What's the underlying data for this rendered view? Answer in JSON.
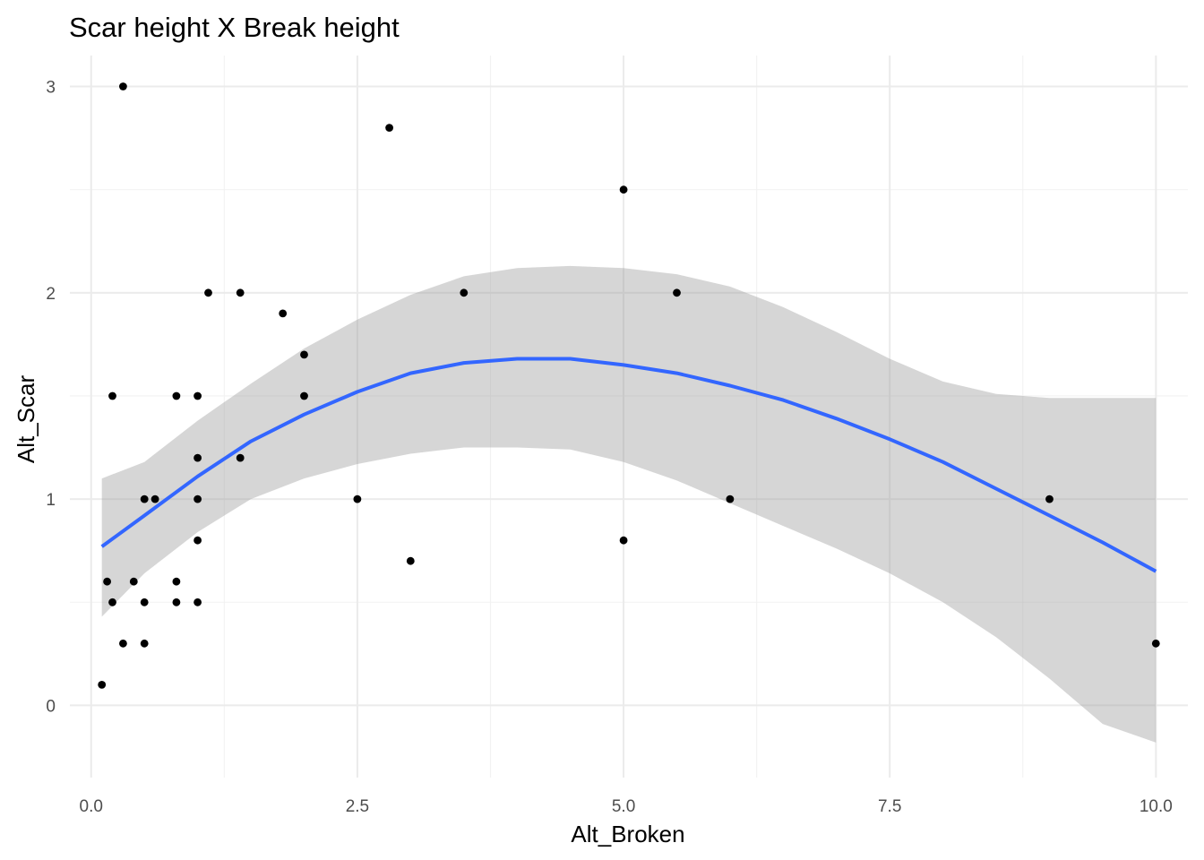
{
  "chart_data": {
    "type": "scatter",
    "title": "Scar height X Break height",
    "xlabel": "Alt_Broken",
    "ylabel": "Alt_Scar",
    "xlim": [
      -0.2,
      10.3
    ],
    "ylim": [
      -0.35,
      3.15
    ],
    "x_ticks": [
      0.0,
      2.5,
      5.0,
      7.5,
      10.0
    ],
    "x_tick_labels": [
      "0.0",
      "2.5",
      "5.0",
      "7.5",
      "10.0"
    ],
    "y_ticks": [
      0,
      1,
      2,
      3
    ],
    "y_tick_labels": [
      "0",
      "1",
      "2",
      "3"
    ],
    "grid": true,
    "point_color": "#000000",
    "smooth_color": "#3366ff",
    "ribbon_color": "#d9d9d9",
    "grid_major_color": "#ebebeb",
    "grid_minor_color": "#f2f2f2",
    "points": [
      {
        "x": 0.1,
        "y": 0.1
      },
      {
        "x": 0.15,
        "y": 0.6
      },
      {
        "x": 0.2,
        "y": 0.5
      },
      {
        "x": 0.2,
        "y": 1.5
      },
      {
        "x": 0.3,
        "y": 3.0
      },
      {
        "x": 0.3,
        "y": 0.3
      },
      {
        "x": 0.4,
        "y": 0.6
      },
      {
        "x": 0.5,
        "y": 0.3
      },
      {
        "x": 0.5,
        "y": 0.5
      },
      {
        "x": 0.5,
        "y": 1.0
      },
      {
        "x": 0.6,
        "y": 1.0
      },
      {
        "x": 0.8,
        "y": 1.5
      },
      {
        "x": 0.8,
        "y": 0.6
      },
      {
        "x": 0.8,
        "y": 0.5
      },
      {
        "x": 1.0,
        "y": 1.5
      },
      {
        "x": 1.0,
        "y": 1.2
      },
      {
        "x": 1.0,
        "y": 1.0
      },
      {
        "x": 1.0,
        "y": 0.8
      },
      {
        "x": 1.0,
        "y": 0.5
      },
      {
        "x": 1.1,
        "y": 2.0
      },
      {
        "x": 1.4,
        "y": 2.0
      },
      {
        "x": 1.4,
        "y": 1.2
      },
      {
        "x": 1.8,
        "y": 1.9
      },
      {
        "x": 2.0,
        "y": 1.7
      },
      {
        "x": 2.0,
        "y": 1.5
      },
      {
        "x": 2.5,
        "y": 1.0
      },
      {
        "x": 2.8,
        "y": 2.8
      },
      {
        "x": 3.0,
        "y": 0.7
      },
      {
        "x": 3.5,
        "y": 2.0
      },
      {
        "x": 5.0,
        "y": 2.5
      },
      {
        "x": 5.0,
        "y": 0.8
      },
      {
        "x": 5.5,
        "y": 2.0
      },
      {
        "x": 6.0,
        "y": 1.0
      },
      {
        "x": 9.0,
        "y": 1.0
      },
      {
        "x": 10.0,
        "y": 0.3
      }
    ],
    "smooth": {
      "x": [
        0.1,
        0.5,
        1.0,
        1.5,
        2.0,
        2.5,
        3.0,
        3.5,
        4.0,
        4.5,
        5.0,
        5.5,
        6.0,
        6.5,
        7.0,
        7.5,
        8.0,
        8.5,
        9.0,
        9.5,
        10.0
      ],
      "y": [
        0.77,
        0.92,
        1.11,
        1.28,
        1.41,
        1.52,
        1.61,
        1.66,
        1.68,
        1.68,
        1.65,
        1.61,
        1.55,
        1.48,
        1.39,
        1.29,
        1.18,
        1.05,
        0.92,
        0.79,
        0.65
      ],
      "ymin": [
        0.43,
        0.64,
        0.84,
        1.0,
        1.1,
        1.17,
        1.22,
        1.25,
        1.25,
        1.24,
        1.18,
        1.09,
        0.98,
        0.87,
        0.76,
        0.64,
        0.5,
        0.33,
        0.13,
        -0.09,
        -0.18
      ],
      "ymax": [
        1.1,
        1.18,
        1.38,
        1.56,
        1.73,
        1.87,
        1.99,
        2.08,
        2.12,
        2.13,
        2.12,
        2.09,
        2.03,
        1.93,
        1.81,
        1.68,
        1.57,
        1.51,
        1.49,
        1.49,
        1.49
      ]
    }
  }
}
